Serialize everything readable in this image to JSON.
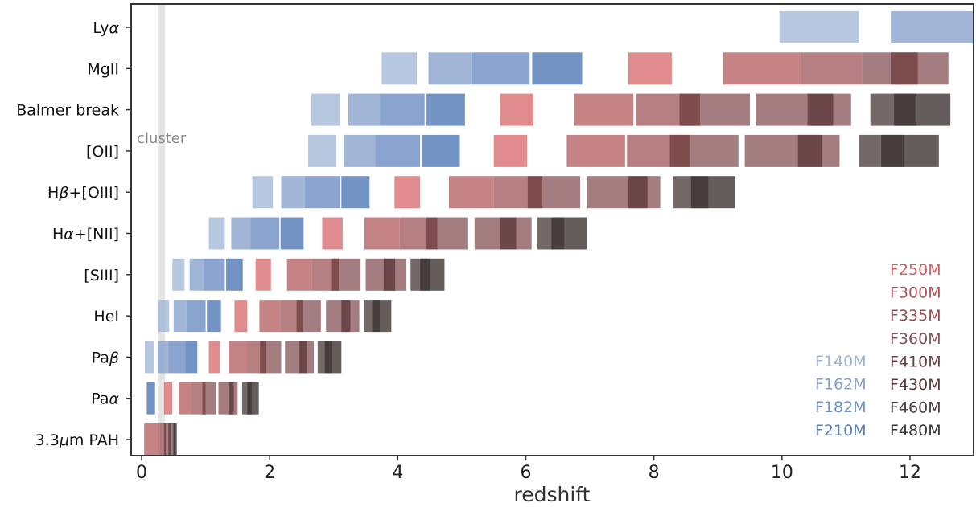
{
  "chart_data": {
    "type": "bar",
    "orientation": "horizontal-ranges",
    "xlabel": "redshift",
    "ylabel": "",
    "xlim": [
      -0.2,
      13
    ],
    "xticks": [
      0,
      2,
      4,
      6,
      8,
      10,
      12
    ],
    "cluster": {
      "label": "cluster",
      "z": 0.31
    },
    "filters": [
      {
        "name": "F140M",
        "color": "#a0b4d6",
        "opacity": 0.75
      },
      {
        "name": "F162M",
        "color": "#86a0cc",
        "opacity": 0.78
      },
      {
        "name": "F182M",
        "color": "#7090c4",
        "opacity": 0.82
      },
      {
        "name": "F210M",
        "color": "#5a80ba",
        "opacity": 0.85
      },
      {
        "name": "F250M",
        "color": "#d45f64",
        "opacity": 0.72
      },
      {
        "name": "F300M",
        "color": "#b05358",
        "opacity": 0.72
      },
      {
        "name": "F335M",
        "color": "#9a4e52",
        "opacity": 0.72
      },
      {
        "name": "F360M",
        "color": "#855257",
        "opacity": 0.75
      },
      {
        "name": "F410M",
        "color": "#703d40",
        "opacity": 0.78
      },
      {
        "name": "F430M",
        "color": "#5d3a3c",
        "opacity": 0.8
      },
      {
        "name": "F460M",
        "color": "#4e3d3e",
        "opacity": 0.78
      },
      {
        "name": "F480M",
        "color": "#3e3333",
        "opacity": 0.8
      }
    ],
    "legend": {
      "placement": "bottom-right",
      "left_column": [
        "F140M",
        "F162M",
        "F182M",
        "F210M"
      ],
      "right_column": [
        "F250M",
        "F300M",
        "F335M",
        "F360M",
        "F410M",
        "F430M",
        "F460M",
        "F480M"
      ]
    },
    "lines": [
      {
        "label": "Lyα",
        "label_text": "Ly",
        "label_greek": "α",
        "label_suffix": "",
        "ranges": [
          {
            "f": 0,
            "z0": 9.96,
            "z1": 11.2
          },
          {
            "f": 1,
            "z0": 11.7,
            "z1": 13.1
          }
        ]
      },
      {
        "label": "MgII",
        "label_text": "MgII",
        "label_greek": "",
        "label_suffix": "",
        "ranges": [
          {
            "f": 0,
            "z0": 3.75,
            "z1": 4.3
          },
          {
            "f": 1,
            "z0": 4.48,
            "z1": 5.15
          },
          {
            "f": 2,
            "z0": 5.15,
            "z1": 6.06
          },
          {
            "f": 3,
            "z0": 6.1,
            "z1": 6.88
          },
          {
            "f": 4,
            "z0": 7.6,
            "z1": 8.28
          },
          {
            "f": 5,
            "z0": 9.08,
            "z1": 10.3
          },
          {
            "f": 6,
            "z0": 10.3,
            "z1": 11.25
          },
          {
            "f": 7,
            "z0": 11.25,
            "z1": 12.6
          },
          {
            "f": 8,
            "z0": 11.7,
            "z1": 12.12
          },
          {
            "f": 9,
            "z0": 13.0,
            "z1": 13.1
          }
        ]
      },
      {
        "label": "Balmer break",
        "label_text": "Balmer break",
        "label_greek": "",
        "label_suffix": "",
        "ranges": [
          {
            "f": 0,
            "z0": 2.65,
            "z1": 3.1
          },
          {
            "f": 1,
            "z0": 3.23,
            "z1": 3.72
          },
          {
            "f": 2,
            "z0": 3.72,
            "z1": 4.42
          },
          {
            "f": 3,
            "z0": 4.45,
            "z1": 5.05
          },
          {
            "f": 4,
            "z0": 5.6,
            "z1": 6.12
          },
          {
            "f": 5,
            "z0": 6.75,
            "z1": 7.68
          },
          {
            "f": 6,
            "z0": 7.72,
            "z1": 8.72
          },
          {
            "f": 7,
            "z0": 8.72,
            "z1": 9.5
          },
          {
            "f": 8,
            "z0": 8.4,
            "z1": 8.72
          },
          {
            "f": 7,
            "z0": 9.6,
            "z1": 11.08
          },
          {
            "f": 9,
            "z0": 10.4,
            "z1": 10.8
          },
          {
            "f": 10,
            "z0": 11.38,
            "z1": 12.1
          },
          {
            "f": 11,
            "z0": 11.75,
            "z1": 12.63
          }
        ]
      },
      {
        "label": "[OII]",
        "label_text": "[OII]",
        "label_greek": "",
        "label_suffix": "",
        "ranges": [
          {
            "f": 0,
            "z0": 2.6,
            "z1": 3.04
          },
          {
            "f": 1,
            "z0": 3.16,
            "z1": 3.65
          },
          {
            "f": 2,
            "z0": 3.65,
            "z1": 4.35
          },
          {
            "f": 3,
            "z0": 4.38,
            "z1": 4.97
          },
          {
            "f": 4,
            "z0": 5.5,
            "z1": 6.02
          },
          {
            "f": 5,
            "z0": 6.64,
            "z1": 7.55
          },
          {
            "f": 6,
            "z0": 7.58,
            "z1": 8.57
          },
          {
            "f": 7,
            "z0": 8.57,
            "z1": 9.32
          },
          {
            "f": 8,
            "z0": 8.25,
            "z1": 8.57
          },
          {
            "f": 7,
            "z0": 9.42,
            "z1": 10.9
          },
          {
            "f": 9,
            "z0": 10.25,
            "z1": 10.62
          },
          {
            "f": 10,
            "z0": 11.2,
            "z1": 11.9
          },
          {
            "f": 11,
            "z0": 11.55,
            "z1": 12.45
          }
        ]
      },
      {
        "label": "Hβ+[OIII]",
        "label_text": "H",
        "label_greek": "β",
        "label_suffix": "+[OIII]",
        "ranges": [
          {
            "f": 0,
            "z0": 1.73,
            "z1": 2.05
          },
          {
            "f": 1,
            "z0": 2.18,
            "z1": 2.55
          },
          {
            "f": 2,
            "z0": 2.55,
            "z1": 3.1
          },
          {
            "f": 3,
            "z0": 3.12,
            "z1": 3.56
          },
          {
            "f": 4,
            "z0": 3.95,
            "z1": 4.35
          },
          {
            "f": 5,
            "z0": 4.8,
            "z1": 5.5
          },
          {
            "f": 6,
            "z0": 5.5,
            "z1": 6.26
          },
          {
            "f": 7,
            "z0": 6.26,
            "z1": 6.85
          },
          {
            "f": 8,
            "z0": 6.03,
            "z1": 6.26
          },
          {
            "f": 7,
            "z0": 6.96,
            "z1": 8.1
          },
          {
            "f": 9,
            "z0": 7.6,
            "z1": 7.9
          },
          {
            "f": 10,
            "z0": 8.3,
            "z1": 8.85
          },
          {
            "f": 11,
            "z0": 8.58,
            "z1": 9.27
          }
        ]
      },
      {
        "label": "Hα+[NII]",
        "label_text": "H",
        "label_greek": "α",
        "label_suffix": "+[NII]",
        "ranges": [
          {
            "f": 0,
            "z0": 1.05,
            "z1": 1.3
          },
          {
            "f": 1,
            "z0": 1.4,
            "z1": 1.7
          },
          {
            "f": 2,
            "z0": 1.7,
            "z1": 2.15
          },
          {
            "f": 3,
            "z0": 2.17,
            "z1": 2.53
          },
          {
            "f": 4,
            "z0": 2.82,
            "z1": 3.14
          },
          {
            "f": 5,
            "z0": 3.48,
            "z1": 4.03
          },
          {
            "f": 6,
            "z0": 4.03,
            "z1": 4.62
          },
          {
            "f": 7,
            "z0": 4.62,
            "z1": 5.1
          },
          {
            "f": 8,
            "z0": 4.45,
            "z1": 4.62
          },
          {
            "f": 7,
            "z0": 5.2,
            "z1": 6.09
          },
          {
            "f": 9,
            "z0": 5.6,
            "z1": 5.85
          },
          {
            "f": 10,
            "z0": 6.18,
            "z1": 6.6
          },
          {
            "f": 11,
            "z0": 6.4,
            "z1": 6.95
          }
        ]
      },
      {
        "label": "[SIII]",
        "label_text": "[SIII]",
        "label_greek": "",
        "label_suffix": "",
        "ranges": [
          {
            "f": 0,
            "z0": 0.48,
            "z1": 0.67
          },
          {
            "f": 1,
            "z0": 0.75,
            "z1": 0.97
          },
          {
            "f": 2,
            "z0": 0.97,
            "z1": 1.3
          },
          {
            "f": 3,
            "z0": 1.32,
            "z1": 1.58
          },
          {
            "f": 4,
            "z0": 1.78,
            "z1": 2.02
          },
          {
            "f": 5,
            "z0": 2.27,
            "z1": 2.66
          },
          {
            "f": 6,
            "z0": 2.66,
            "z1": 3.08
          },
          {
            "f": 7,
            "z0": 3.08,
            "z1": 3.42
          },
          {
            "f": 8,
            "z0": 2.96,
            "z1": 3.08
          },
          {
            "f": 7,
            "z0": 3.5,
            "z1": 4.13
          },
          {
            "f": 9,
            "z0": 3.78,
            "z1": 3.96
          },
          {
            "f": 10,
            "z0": 4.2,
            "z1": 4.5
          },
          {
            "f": 11,
            "z0": 4.35,
            "z1": 4.73
          }
        ]
      },
      {
        "label": "HeI",
        "label_text": "HeI",
        "label_greek": "",
        "label_suffix": "",
        "ranges": [
          {
            "f": 0,
            "z0": 0.25,
            "z1": 0.43
          },
          {
            "f": 1,
            "z0": 0.5,
            "z1": 0.7
          },
          {
            "f": 2,
            "z0": 0.7,
            "z1": 1.0
          },
          {
            "f": 3,
            "z0": 1.02,
            "z1": 1.24
          },
          {
            "f": 4,
            "z0": 1.45,
            "z1": 1.65
          },
          {
            "f": 5,
            "z0": 1.84,
            "z1": 2.17
          },
          {
            "f": 6,
            "z0": 2.17,
            "z1": 2.52
          },
          {
            "f": 7,
            "z0": 2.52,
            "z1": 2.8
          },
          {
            "f": 8,
            "z0": 2.42,
            "z1": 2.52
          },
          {
            "f": 7,
            "z0": 2.88,
            "z1": 3.4
          },
          {
            "f": 9,
            "z0": 3.12,
            "z1": 3.26
          },
          {
            "f": 10,
            "z0": 3.48,
            "z1": 3.72
          },
          {
            "f": 11,
            "z0": 3.6,
            "z1": 3.9
          }
        ]
      },
      {
        "label": "Paβ",
        "label_text": "Pa",
        "label_greek": "β",
        "label_suffix": "",
        "ranges": [
          {
            "f": 0,
            "z0": 0.05,
            "z1": 0.2
          },
          {
            "f": 1,
            "z0": 0.25,
            "z1": 0.42
          },
          {
            "f": 2,
            "z0": 0.42,
            "z1": 0.68
          },
          {
            "f": 3,
            "z0": 0.68,
            "z1": 0.87
          },
          {
            "f": 4,
            "z0": 1.05,
            "z1": 1.22
          },
          {
            "f": 5,
            "z0": 1.36,
            "z1": 1.64
          },
          {
            "f": 6,
            "z0": 1.64,
            "z1": 1.94
          },
          {
            "f": 7,
            "z0": 1.94,
            "z1": 2.18
          },
          {
            "f": 8,
            "z0": 1.85,
            "z1": 1.94
          },
          {
            "f": 7,
            "z0": 2.24,
            "z1": 2.69
          },
          {
            "f": 9,
            "z0": 2.45,
            "z1": 2.58
          },
          {
            "f": 10,
            "z0": 2.75,
            "z1": 2.97
          },
          {
            "f": 11,
            "z0": 2.86,
            "z1": 3.12
          }
        ]
      },
      {
        "label": "Paα",
        "label_text": "Pa",
        "label_greek": "α",
        "label_suffix": "",
        "ranges": [
          {
            "f": 3,
            "z0": 0.08,
            "z1": 0.21
          },
          {
            "f": 4,
            "z0": 0.35,
            "z1": 0.48
          },
          {
            "f": 5,
            "z0": 0.58,
            "z1": 0.78
          },
          {
            "f": 6,
            "z0": 0.78,
            "z1": 1.0
          },
          {
            "f": 7,
            "z0": 1.0,
            "z1": 1.16
          },
          {
            "f": 8,
            "z0": 0.95,
            "z1": 1.0
          },
          {
            "f": 7,
            "z0": 1.2,
            "z1": 1.5
          },
          {
            "f": 9,
            "z0": 1.36,
            "z1": 1.44
          },
          {
            "f": 10,
            "z0": 1.57,
            "z1": 1.72
          },
          {
            "f": 11,
            "z0": 1.65,
            "z1": 1.83
          }
        ]
      },
      {
        "label": "3.3μm PAH",
        "label_text": "3.3",
        "label_greek": "μ",
        "label_suffix": "m PAH",
        "ranges": [
          {
            "f": 5,
            "z0": 0.04,
            "z1": 0.28
          },
          {
            "f": 6,
            "z0": 0.28,
            "z1": 0.38
          },
          {
            "f": 7,
            "z0": 0.38,
            "z1": 0.48
          },
          {
            "f": 8,
            "z0": 0.35,
            "z1": 0.38
          },
          {
            "f": 9,
            "z0": 0.42,
            "z1": 0.46
          },
          {
            "f": 10,
            "z0": 0.48,
            "z1": 0.52
          },
          {
            "f": 11,
            "z0": 0.5,
            "z1": 0.55
          }
        ]
      }
    ]
  }
}
